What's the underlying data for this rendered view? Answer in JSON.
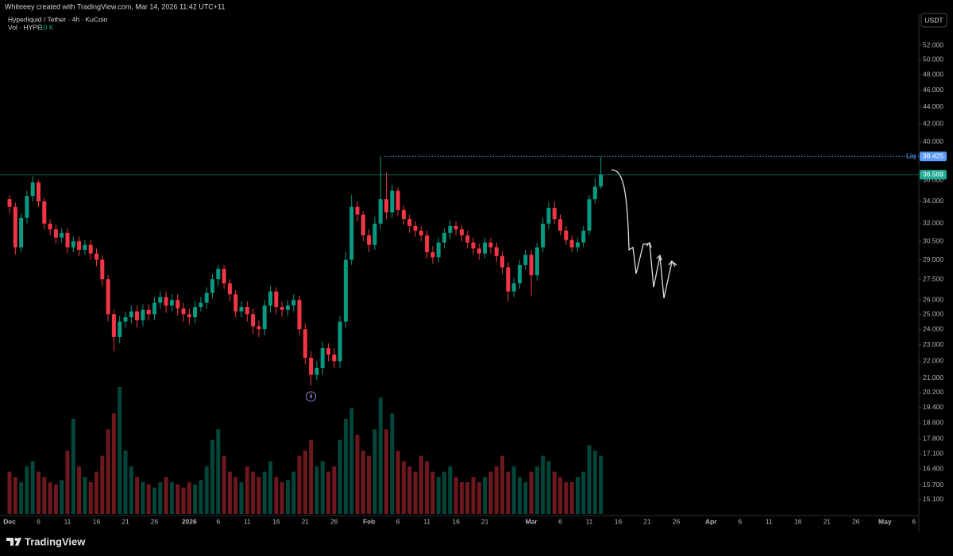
{
  "chart_data": {
    "type": "candlestick",
    "header": "Whiteeey created with TradingView.com, Mar 14, 2026 11:42 UTC+11",
    "title": "Hyperliquid / Tether · 4h · KuCoin",
    "volume_label": "Vol · HYPE",
    "volume_value": "10 K",
    "currency": "USDT",
    "annotation": "ii",
    "brand": "TradingView",
    "log_scale": true,
    "up_color": "#089981",
    "down_color": "#f23645",
    "ylim": [
      14.45,
      56.6
    ],
    "yticks": [
      {
        "value": 52,
        "label": "52.000"
      },
      {
        "value": 50,
        "label": "50.000"
      },
      {
        "value": 48,
        "label": "48.000"
      },
      {
        "value": 46,
        "label": "46.000"
      },
      {
        "value": 44,
        "label": "44.000"
      },
      {
        "value": 42,
        "label": "42.000"
      },
      {
        "value": 40,
        "label": "40.000"
      },
      {
        "value": 36,
        "label": "36.000"
      },
      {
        "value": 34,
        "label": "34.000"
      },
      {
        "value": 32,
        "label": "32.000"
      },
      {
        "value": 30.5,
        "label": "30.500"
      },
      {
        "value": 29,
        "label": "29.000"
      },
      {
        "value": 27.5,
        "label": "27.500"
      },
      {
        "value": 26,
        "label": "26.000"
      },
      {
        "value": 25,
        "label": "25.000"
      },
      {
        "value": 24,
        "label": "24.000"
      },
      {
        "value": 23,
        "label": "23.000"
      },
      {
        "value": 22,
        "label": "22.000"
      },
      {
        "value": 21,
        "label": "21.000"
      },
      {
        "value": 20.2,
        "label": "20.200"
      },
      {
        "value": 19.4,
        "label": "19.400"
      },
      {
        "value": 18.6,
        "label": "18.600"
      },
      {
        "value": 17.8,
        "label": "17.800"
      },
      {
        "value": 17.1,
        "label": "17.100"
      },
      {
        "value": 16.4,
        "label": "16.400"
      },
      {
        "value": 15.7,
        "label": "15.700"
      },
      {
        "value": 15.1,
        "label": "15.100"
      }
    ],
    "levels": [
      {
        "name": "Liq",
        "value": 38.425,
        "color": "#5b9cf6"
      },
      {
        "value": 36.569,
        "color": "#22ab94"
      }
    ],
    "categories": [
      "Dec",
      null,
      null,
      null,
      null,
      "6",
      null,
      null,
      null,
      null,
      "11",
      null,
      null,
      null,
      null,
      "16",
      null,
      null,
      null,
      null,
      "21",
      null,
      null,
      null,
      null,
      "26",
      null,
      null,
      null,
      null,
      null,
      "2026",
      null,
      null,
      null,
      null,
      "6",
      null,
      null,
      null,
      null,
      "11",
      null,
      null,
      null,
      null,
      "16",
      null,
      null,
      null,
      null,
      "21",
      null,
      null,
      null,
      null,
      "26",
      null,
      null,
      null,
      null,
      null,
      "Feb",
      null,
      null,
      null,
      null,
      "6",
      null,
      null,
      null,
      null,
      "11",
      null,
      null,
      null,
      null,
      "16",
      null,
      null,
      null,
      null,
      "21",
      null,
      null,
      null,
      null,
      null,
      null,
      null,
      "Mar",
      null,
      null,
      null,
      null,
      "6",
      null,
      null,
      null,
      null,
      "11",
      null,
      null,
      null,
      null,
      "16",
      null,
      null,
      null,
      null,
      "21",
      null,
      null,
      null,
      null,
      "26",
      null,
      null,
      null,
      null,
      null,
      "Apr",
      null,
      null,
      null,
      null,
      "6",
      null,
      null,
      null,
      null,
      "11",
      null,
      null,
      null,
      null,
      "16",
      null,
      null,
      null,
      null,
      "21",
      null,
      null,
      null,
      null,
      "26",
      null,
      null,
      null,
      null,
      "May",
      null,
      null,
      null,
      null,
      "6"
    ],
    "open": [
      34.2,
      33.5,
      30.0,
      32.5,
      34.5,
      35.8,
      34.0,
      32.0,
      31.5,
      30.8,
      31.2,
      30.0,
      30.5,
      29.8,
      30.2,
      29.5,
      29.0,
      27.5,
      25.0,
      23.5,
      24.5,
      24.8,
      25.2,
      24.6,
      25.3,
      25.0,
      25.8,
      26.2,
      25.6,
      26.0,
      25.4,
      25.0,
      24.8,
      25.5,
      25.8,
      26.5,
      27.5,
      28.3,
      27.2,
      26.4,
      25.2,
      25.5,
      25.0,
      24.2,
      24.0,
      25.6,
      26.6,
      25.5,
      25.3,
      25.6,
      26.0,
      24.0,
      22.2,
      21.2,
      21.6,
      22.8,
      22.4,
      22.0,
      24.5,
      29.0,
      33.5,
      32.8,
      31.0,
      30.2,
      32.0,
      34.2,
      33.0,
      35.0,
      33.2,
      32.4,
      31.8,
      31.4,
      31.0,
      29.6,
      29.2,
      30.4,
      31.2,
      31.8,
      31.5,
      31.0,
      30.4,
      29.9,
      29.5,
      30.4,
      30.0,
      29.3,
      28.4,
      26.6,
      27.2,
      28.6,
      29.4,
      27.8,
      30.0,
      32.0,
      33.4,
      32.4,
      31.4,
      30.6,
      30.0,
      30.4,
      31.4,
      34.2,
      35.4,
      null,
      null,
      null,
      null,
      null,
      null,
      null,
      null,
      null,
      null,
      null,
      null,
      null,
      null,
      null,
      null,
      null,
      null,
      null,
      null,
      null,
      null,
      null,
      null,
      null,
      null,
      null,
      null,
      null,
      null,
      null,
      null,
      null,
      null,
      null,
      null,
      null,
      null,
      null,
      null,
      null,
      null,
      null,
      null,
      null,
      null,
      null,
      null,
      null,
      null,
      null,
      null,
      null,
      null
    ],
    "high": [
      34.6,
      33.9,
      32.9,
      35.0,
      36.4,
      36.0,
      34.3,
      32.4,
      31.9,
      31.6,
      31.6,
      30.9,
      30.9,
      30.6,
      30.6,
      29.9,
      29.3,
      27.8,
      25.3,
      24.9,
      25.2,
      25.6,
      25.6,
      25.7,
      25.7,
      26.2,
      26.6,
      26.6,
      26.4,
      26.4,
      25.8,
      25.4,
      25.9,
      26.2,
      26.9,
      27.9,
      28.6,
      28.6,
      27.5,
      26.7,
      25.9,
      25.9,
      25.4,
      24.6,
      26.0,
      27.0,
      26.9,
      25.9,
      26.0,
      26.4,
      26.3,
      24.4,
      22.6,
      22.0,
      23.2,
      23.1,
      22.8,
      24.9,
      29.6,
      34.6,
      34.0,
      33.1,
      31.5,
      32.6,
      38.425,
      36.8,
      35.6,
      35.3,
      33.6,
      32.8,
      32.2,
      31.8,
      31.4,
      30.1,
      30.8,
      31.6,
      32.3,
      32.2,
      31.9,
      31.4,
      30.8,
      30.3,
      30.8,
      30.8,
      30.4,
      29.7,
      28.8,
      27.6,
      29.0,
      29.8,
      29.8,
      30.4,
      32.5,
      33.9,
      34.0,
      32.8,
      31.8,
      31.0,
      30.8,
      31.8,
      34.6,
      36.2,
      38.4,
      null,
      null,
      null,
      null,
      null,
      null,
      null,
      null,
      null,
      null,
      null,
      null,
      null,
      null,
      null,
      null,
      null,
      null,
      null,
      null,
      null,
      null,
      null,
      null,
      null,
      null,
      null,
      null,
      null,
      null,
      null,
      null,
      null,
      null,
      null,
      null,
      null,
      null,
      null,
      null,
      null,
      null,
      null,
      null,
      null,
      null,
      null,
      null,
      null,
      null,
      null,
      null,
      null,
      null
    ],
    "low": [
      32.9,
      29.4,
      29.6,
      32.0,
      34.0,
      33.5,
      31.5,
      31.0,
      30.3,
      30.4,
      29.5,
      29.6,
      29.3,
      29.4,
      29.0,
      28.5,
      27.0,
      24.5,
      22.6,
      23.1,
      24.1,
      24.4,
      24.1,
      24.2,
      24.6,
      24.6,
      25.4,
      25.1,
      25.2,
      24.9,
      24.5,
      24.3,
      24.4,
      25.2,
      25.4,
      26.1,
      27.0,
      26.8,
      25.9,
      24.8,
      24.8,
      24.5,
      23.7,
      23.5,
      23.6,
      25.1,
      25.0,
      24.8,
      24.9,
      25.2,
      23.6,
      21.8,
      20.6,
      20.9,
      21.2,
      22.0,
      21.6,
      21.6,
      24.1,
      28.6,
      32.2,
      30.5,
      29.6,
      29.8,
      31.5,
      32.4,
      32.5,
      32.7,
      31.9,
      31.2,
      30.9,
      30.5,
      29.1,
      28.7,
      28.8,
      29.9,
      30.7,
      31.0,
      30.5,
      29.9,
      29.4,
      29.0,
      29.1,
      29.5,
      28.8,
      27.9,
      25.9,
      26.2,
      26.8,
      28.2,
      26.3,
      27.4,
      29.6,
      31.5,
      32.0,
      31.0,
      30.2,
      29.6,
      29.6,
      30.0,
      31.0,
      33.8,
      35.2,
      null,
      null,
      null,
      null,
      null,
      null,
      null,
      null,
      null,
      null,
      null,
      null,
      null,
      null,
      null,
      null,
      null,
      null,
      null,
      null,
      null,
      null,
      null,
      null,
      null,
      null,
      null,
      null,
      null,
      null,
      null,
      null,
      null,
      null,
      null,
      null,
      null,
      null,
      null,
      null,
      null,
      null,
      null,
      null,
      null,
      null,
      null,
      null,
      null,
      null,
      null,
      null,
      null,
      null
    ],
    "close": [
      33.5,
      30.0,
      32.5,
      34.5,
      35.8,
      34.0,
      32.0,
      31.5,
      30.8,
      31.2,
      30.0,
      30.5,
      29.8,
      30.2,
      29.5,
      29.0,
      27.5,
      25.0,
      23.5,
      24.5,
      24.8,
      25.2,
      24.6,
      25.3,
      25.0,
      25.8,
      26.2,
      25.6,
      26.0,
      25.4,
      25.0,
      24.8,
      25.5,
      25.8,
      26.5,
      27.5,
      28.3,
      27.2,
      26.4,
      25.2,
      25.5,
      25.0,
      24.2,
      24.0,
      25.6,
      26.6,
      25.5,
      25.3,
      25.6,
      26.0,
      24.0,
      22.2,
      21.2,
      21.6,
      22.8,
      22.4,
      22.0,
      24.5,
      29.0,
      33.5,
      32.8,
      31.0,
      30.2,
      32.0,
      34.2,
      33.0,
      35.0,
      33.2,
      32.4,
      31.8,
      31.4,
      31.0,
      29.6,
      29.2,
      30.4,
      31.2,
      31.8,
      31.5,
      31.0,
      30.4,
      29.9,
      29.5,
      30.4,
      30.0,
      29.3,
      28.4,
      26.6,
      27.2,
      28.6,
      29.4,
      27.8,
      30.0,
      32.0,
      33.4,
      32.4,
      31.4,
      30.6,
      30.0,
      30.4,
      31.4,
      34.2,
      35.4,
      36.569,
      null,
      null,
      null,
      null,
      null,
      null,
      null,
      null,
      null,
      null,
      null,
      null,
      null,
      null,
      null,
      null,
      null,
      null,
      null,
      null,
      null,
      null,
      null,
      null,
      null,
      null,
      null,
      null,
      null,
      null,
      null,
      null,
      null,
      null,
      null,
      null,
      null,
      null,
      null,
      null,
      null,
      null,
      null,
      null,
      null,
      null,
      null,
      null,
      null,
      null,
      null,
      null,
      null,
      null
    ],
    "volume": [
      40,
      35,
      30,
      45,
      50,
      40,
      35,
      30,
      28,
      32,
      60,
      90,
      45,
      35,
      30,
      40,
      55,
      80,
      95,
      120,
      60,
      45,
      35,
      30,
      28,
      25,
      30,
      35,
      30,
      28,
      25,
      30,
      28,
      32,
      45,
      70,
      80,
      55,
      40,
      35,
      30,
      45,
      40,
      35,
      40,
      50,
      35,
      30,
      32,
      40,
      55,
      60,
      70,
      45,
      50,
      40,
      45,
      70,
      90,
      100,
      75,
      60,
      55,
      80,
      110,
      80,
      95,
      60,
      50,
      45,
      40,
      55,
      50,
      40,
      35,
      40,
      45,
      35,
      30,
      30,
      35,
      30,
      35,
      40,
      45,
      55,
      40,
      45,
      35,
      30,
      40,
      45,
      55,
      50,
      40,
      35,
      30,
      30,
      35,
      40,
      65,
      60,
      55,
      null,
      null,
      null,
      null,
      null,
      null,
      null,
      null,
      null,
      null,
      null,
      null,
      null,
      null,
      null,
      null,
      null,
      null,
      null,
      null,
      null,
      null,
      null,
      null,
      null,
      null,
      null,
      null,
      null,
      null,
      null,
      null,
      null,
      null,
      null,
      null,
      null,
      null,
      null,
      null,
      null,
      null,
      null,
      null,
      null,
      null,
      null,
      null,
      null,
      null,
      null,
      null,
      null,
      null
    ]
  }
}
